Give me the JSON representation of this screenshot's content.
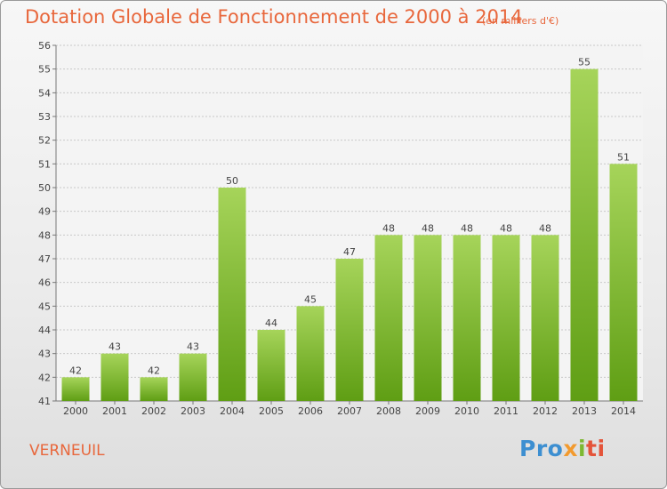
{
  "header": {
    "title": "Dotation Globale de Fonctionnement de 2000 à 2014",
    "subtitle": "(en milliers d'€)"
  },
  "footer": {
    "commune": "VERNEUIL",
    "logo": {
      "part1": "Pro",
      "part2": "x",
      "part3": "i",
      "part4": "ti"
    }
  },
  "colors": {
    "accent": "#e8673c",
    "bar_top": "#a6d45a",
    "bar_bottom": "#5f9e14",
    "grid": "#c8c8c8"
  },
  "chart_data": {
    "type": "bar",
    "title": "Dotation Globale de Fonctionnement de 2000 à 2014",
    "subtitle": "(en milliers d'€)",
    "categories": [
      "2000",
      "2001",
      "2002",
      "2003",
      "2004",
      "2005",
      "2006",
      "2007",
      "2008",
      "2009",
      "2010",
      "2011",
      "2012",
      "2013",
      "2014"
    ],
    "values": [
      42,
      43,
      42,
      43,
      50,
      44,
      45,
      47,
      48,
      48,
      48,
      48,
      48,
      55,
      51
    ],
    "ylim": [
      41,
      56
    ],
    "yticks": [
      41,
      42,
      43,
      44,
      45,
      46,
      47,
      48,
      49,
      50,
      51,
      52,
      53,
      54,
      55,
      56
    ],
    "grid": true,
    "data_labels": true
  }
}
